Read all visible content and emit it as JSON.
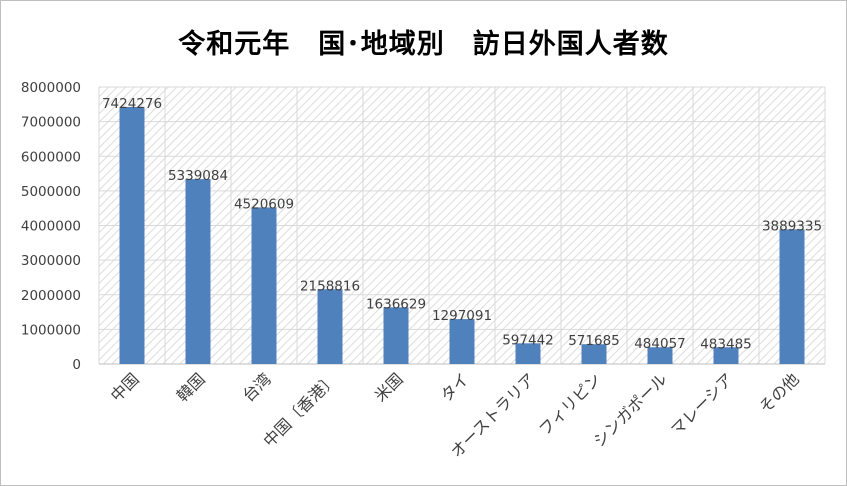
{
  "chart_data": {
    "type": "bar",
    "title": "令和元年　国･地域別　訪日外国人者数",
    "xlabel": "",
    "ylabel": "",
    "categories": [
      "中国",
      "韓国",
      "台湾",
      "中国〔香港〕",
      "米国",
      "タイ",
      "オーストラリア",
      "フィリピン",
      "シンガポール",
      "マレーシア",
      "その他"
    ],
    "values": [
      7424276,
      5339084,
      4520609,
      2158816,
      1636629,
      1297091,
      597442,
      571685,
      484057,
      483485,
      3889335
    ],
    "data_labels": [
      "7424276",
      "5339084",
      "4520609",
      "2158816",
      "1636629",
      "1297091",
      "597442",
      "571685",
      "484057",
      "483485",
      "3889335"
    ],
    "ylim": [
      0,
      8000000
    ],
    "yticks": [
      "0",
      "1000000",
      "2000000",
      "3000000",
      "4000000",
      "5000000",
      "6000000",
      "7000000",
      "8000000"
    ],
    "grid": true,
    "legend": "none",
    "bar_color": "#4f81bd",
    "grid_color": "#d9d9d9",
    "plot_background": "hatched-light-gray"
  }
}
